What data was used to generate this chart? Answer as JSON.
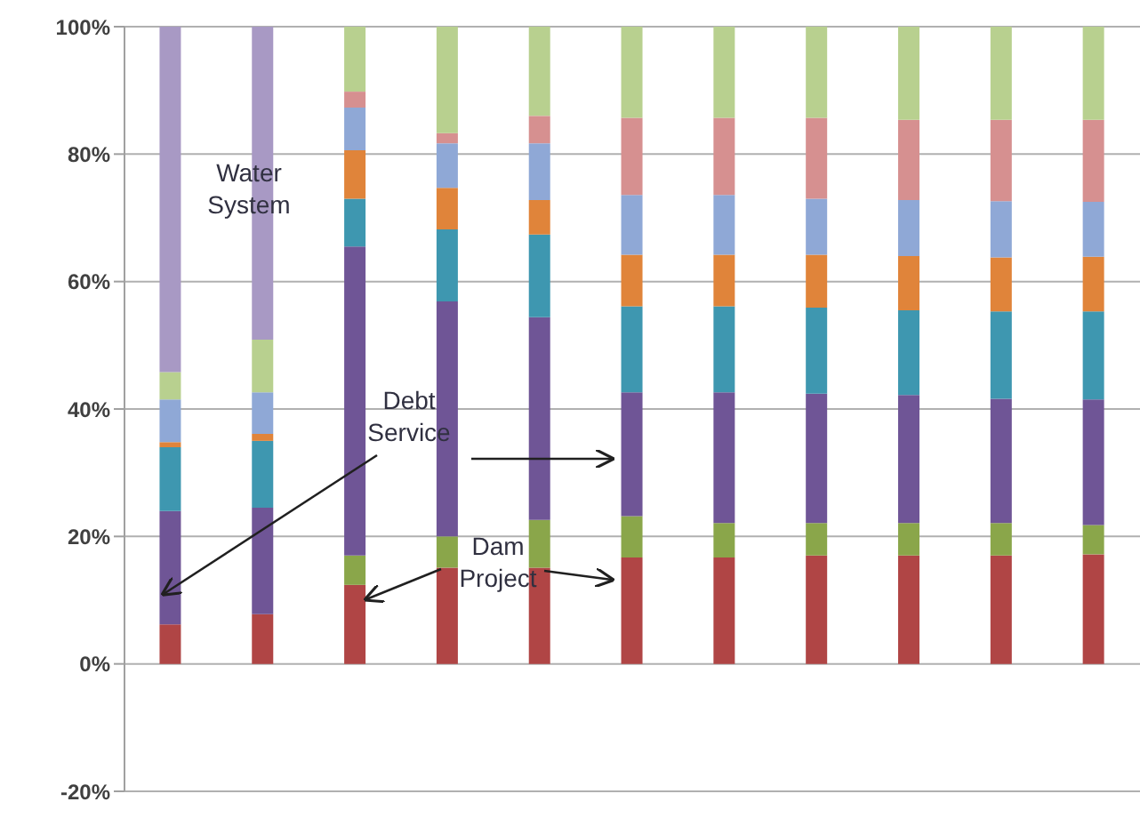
{
  "chart_data": {
    "type": "bar",
    "stacked": true,
    "categories": [
      null,
      null,
      null,
      null,
      null,
      null,
      null,
      null,
      null,
      null,
      null
    ],
    "series": [
      {
        "color": "#b04545",
        "values": [
          6.2,
          7.8,
          12.4,
          15.1,
          15.1,
          16.7,
          16.7,
          17,
          17,
          17,
          17.2
        ]
      },
      {
        "color": "#8aa64a",
        "values": [
          0,
          0,
          4.6,
          4.9,
          7.5,
          6.5,
          5.4,
          5.1,
          5.1,
          5.1,
          4.6
        ]
      },
      {
        "color": "#6f5596",
        "values": [
          17.8,
          16.7,
          48.5,
          36.9,
          31.8,
          19.4,
          20.5,
          20.3,
          20.1,
          19.5,
          19.7
        ]
      },
      {
        "color": "#3e97b0",
        "values": [
          10,
          10.5,
          7.5,
          11.3,
          13,
          13.5,
          13.5,
          13.5,
          13.3,
          13.7,
          13.8
        ]
      },
      {
        "color": "#e0843a",
        "values": [
          0.8,
          1.1,
          7.6,
          6.5,
          5.4,
          8.1,
          8.1,
          8.3,
          8.5,
          8.5,
          8.6
        ]
      },
      {
        "color": "#8fa8d6",
        "values": [
          6.7,
          6.5,
          6.7,
          7,
          8.9,
          9.4,
          9.4,
          8.8,
          8.8,
          8.8,
          8.6
        ]
      },
      {
        "color": "#d69090",
        "values": [
          0,
          0,
          2.5,
          1.6,
          4.3,
          12.1,
          12.1,
          12.7,
          12.6,
          12.8,
          12.9
        ]
      },
      {
        "color": "#b8d08f",
        "values": [
          4.3,
          8.3,
          10.2,
          16.7,
          14,
          14.3,
          14.3,
          14.3,
          14.6,
          14.6,
          14.6
        ]
      },
      {
        "color": "#a899c4",
        "values": [
          54.2,
          49.1,
          0,
          0,
          0,
          0,
          0,
          0,
          0,
          0,
          0
        ]
      }
    ],
    "ylim": [
      -20,
      100
    ],
    "yticks": [
      {
        "value": -20,
        "label": "-20%"
      },
      {
        "value": 0,
        "label": "0%"
      },
      {
        "value": 20,
        "label": "20%"
      },
      {
        "value": 40,
        "label": "40%"
      },
      {
        "value": 60,
        "label": "60%"
      },
      {
        "value": 80,
        "label": "80%"
      },
      {
        "value": 100,
        "label": "100%"
      }
    ],
    "grid": "y",
    "tick_labels": "y",
    "annotations": [
      "Water System",
      "Debt Service",
      "Dam Project"
    ]
  }
}
